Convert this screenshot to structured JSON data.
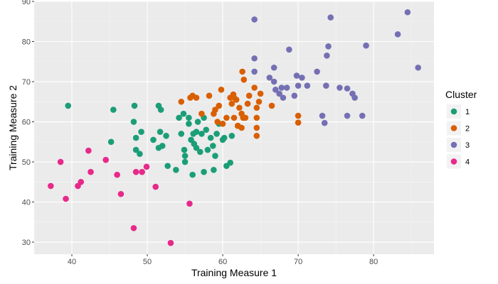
{
  "chart_data": {
    "type": "scatter",
    "title": "",
    "xlabel": "Training Measure 1",
    "ylabel": "Training Measure 2",
    "xlim": [
      35,
      88
    ],
    "ylim": [
      27,
      90
    ],
    "x_ticks": [
      40,
      50,
      60,
      70,
      80
    ],
    "y_ticks": [
      30,
      40,
      50,
      60,
      70,
      80,
      90
    ],
    "grid": true,
    "legend": {
      "title": "Cluster",
      "position": "right"
    },
    "series": [
      {
        "name": "1",
        "color": "#1b9e77",
        "points": [
          [
            39.5,
            64
          ],
          [
            45.5,
            63
          ],
          [
            45.2,
            55
          ],
          [
            48.3,
            64
          ],
          [
            48.2,
            60
          ],
          [
            48.5,
            56
          ],
          [
            49.2,
            57.5
          ],
          [
            48.5,
            53
          ],
          [
            49,
            52
          ],
          [
            50.8,
            55.5
          ],
          [
            51.5,
            64
          ],
          [
            51.8,
            63
          ],
          [
            51.7,
            57.5
          ],
          [
            51.5,
            53.5
          ],
          [
            52,
            54
          ],
          [
            52.5,
            56.5
          ],
          [
            52.7,
            49
          ],
          [
            53.8,
            48
          ],
          [
            54.2,
            61
          ],
          [
            54.8,
            62
          ],
          [
            54.5,
            57
          ],
          [
            54.9,
            53
          ],
          [
            55,
            51.5
          ],
          [
            55,
            50
          ],
          [
            55.5,
            59.5
          ],
          [
            55.8,
            55.5
          ],
          [
            55.5,
            61
          ],
          [
            56.1,
            57
          ],
          [
            56.2,
            54.5
          ],
          [
            56.5,
            53.5
          ],
          [
            56.5,
            57.5
          ],
          [
            56.7,
            60
          ],
          [
            57,
            52.5
          ],
          [
            57.2,
            57
          ],
          [
            57.5,
            61
          ],
          [
            57.8,
            58
          ],
          [
            58,
            53
          ],
          [
            58.4,
            56
          ],
          [
            58.7,
            54
          ],
          [
            58.8,
            48
          ],
          [
            59.2,
            57
          ],
          [
            59,
            51.5
          ],
          [
            59.5,
            59.5
          ],
          [
            60,
            55.5
          ],
          [
            60.2,
            56
          ],
          [
            60.5,
            49
          ],
          [
            61,
            49.8
          ],
          [
            61.2,
            56.5
          ],
          [
            56,
            46.8
          ],
          [
            57.5,
            47.5
          ]
        ]
      },
      {
        "name": "2",
        "color": "#d95f02",
        "points": [
          [
            54.5,
            65
          ],
          [
            55.7,
            66
          ],
          [
            56,
            66.5
          ],
          [
            56.5,
            66
          ],
          [
            57.2,
            62
          ],
          [
            58.2,
            66.5
          ],
          [
            58.8,
            62
          ],
          [
            59,
            63
          ],
          [
            59.3,
            60
          ],
          [
            59.5,
            64
          ],
          [
            59.8,
            68
          ],
          [
            60,
            59.5
          ],
          [
            60.5,
            61
          ],
          [
            61,
            66
          ],
          [
            61.2,
            64.5
          ],
          [
            61.4,
            66.8
          ],
          [
            61.5,
            66
          ],
          [
            61.8,
            65.5
          ],
          [
            62,
            59
          ],
          [
            62.2,
            63.5
          ],
          [
            62.5,
            58.5
          ],
          [
            62.5,
            62
          ],
          [
            62.7,
            61
          ],
          [
            63,
            61
          ],
          [
            62.8,
            70.5
          ],
          [
            62.6,
            72.5
          ],
          [
            63.3,
            64.5
          ],
          [
            63.5,
            66.5
          ],
          [
            64.2,
            68.5
          ],
          [
            64.5,
            63.5
          ],
          [
            64.5,
            61
          ],
          [
            64.5,
            58.5
          ],
          [
            64.5,
            56.5
          ],
          [
            64.8,
            65
          ],
          [
            65,
            67
          ],
          [
            66.5,
            64
          ],
          [
            70,
            61.5
          ],
          [
            70,
            59.8
          ],
          [
            61.5,
            61
          ],
          [
            62,
            59
          ]
        ]
      },
      {
        "name": "3",
        "color": "#7570b3",
        "points": [
          [
            64.2,
            85.5
          ],
          [
            64.2,
            75.8
          ],
          [
            64.2,
            72.5
          ],
          [
            66.2,
            71
          ],
          [
            66.8,
            73.5
          ],
          [
            66.8,
            70
          ],
          [
            67,
            68
          ],
          [
            67.5,
            67
          ],
          [
            67.8,
            68.5
          ],
          [
            68,
            66
          ],
          [
            68.5,
            68.5
          ],
          [
            68.8,
            78
          ],
          [
            69.5,
            66.5
          ],
          [
            69.8,
            71.5
          ],
          [
            70,
            69
          ],
          [
            70.5,
            71
          ],
          [
            71.2,
            69
          ],
          [
            72.5,
            72.5
          ],
          [
            73.2,
            61.5
          ],
          [
            73.5,
            59.7
          ],
          [
            73.7,
            69
          ],
          [
            73.8,
            76.5
          ],
          [
            74,
            78.8
          ],
          [
            74.3,
            86
          ],
          [
            75.5,
            68.5
          ],
          [
            76.5,
            61.5
          ],
          [
            76.5,
            68.3
          ],
          [
            77.2,
            67
          ],
          [
            77.5,
            66
          ],
          [
            78.5,
            61.5
          ],
          [
            79,
            79
          ],
          [
            83.2,
            81.8
          ],
          [
            84.5,
            87.3
          ],
          [
            85.9,
            73.5
          ]
        ]
      },
      {
        "name": "4",
        "color": "#e7298a",
        "points": [
          [
            37.2,
            44
          ],
          [
            38.5,
            50
          ],
          [
            39.2,
            40.8
          ],
          [
            40.8,
            44
          ],
          [
            41.2,
            45
          ],
          [
            42.2,
            52.8
          ],
          [
            42.5,
            47.5
          ],
          [
            44.5,
            50.5
          ],
          [
            46,
            46.8
          ],
          [
            46.5,
            42
          ],
          [
            48.2,
            33.5
          ],
          [
            48.5,
            47.5
          ],
          [
            49.3,
            47.5
          ],
          [
            49.9,
            48.8
          ],
          [
            51.1,
            43.8
          ],
          [
            53.1,
            29.8
          ],
          [
            55.6,
            39.6
          ]
        ]
      }
    ]
  }
}
